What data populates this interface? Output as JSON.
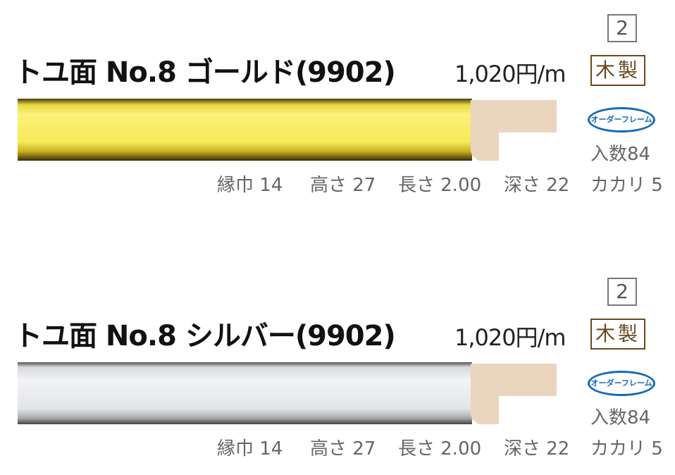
{
  "products": [
    {
      "page_number": "2",
      "title": "トユ面 No.8 ゴールド(9902)",
      "price": "1,020円/m",
      "material": "木製",
      "order_badge": "オーダーフレーム",
      "quantity": "入数84",
      "specs": {
        "width": "縁巾 14",
        "height": "高さ 27",
        "length": "長さ 2.00",
        "depth": "深さ 22",
        "rabbet": "カカリ 5"
      },
      "finish_color": "#f4e04a"
    },
    {
      "page_number": "2",
      "title": "トユ面 No.8 シルバー(9902)",
      "price": "1,020円/m",
      "material": "木製",
      "order_badge": "オーダーフレーム",
      "quantity": "入数84",
      "specs": {
        "width": "縁巾 14",
        "height": "高さ 27",
        "length": "長さ 2.00",
        "depth": "深さ 22",
        "rabbet": "カカリ 5"
      },
      "finish_color": "#e4e6e8"
    }
  ]
}
